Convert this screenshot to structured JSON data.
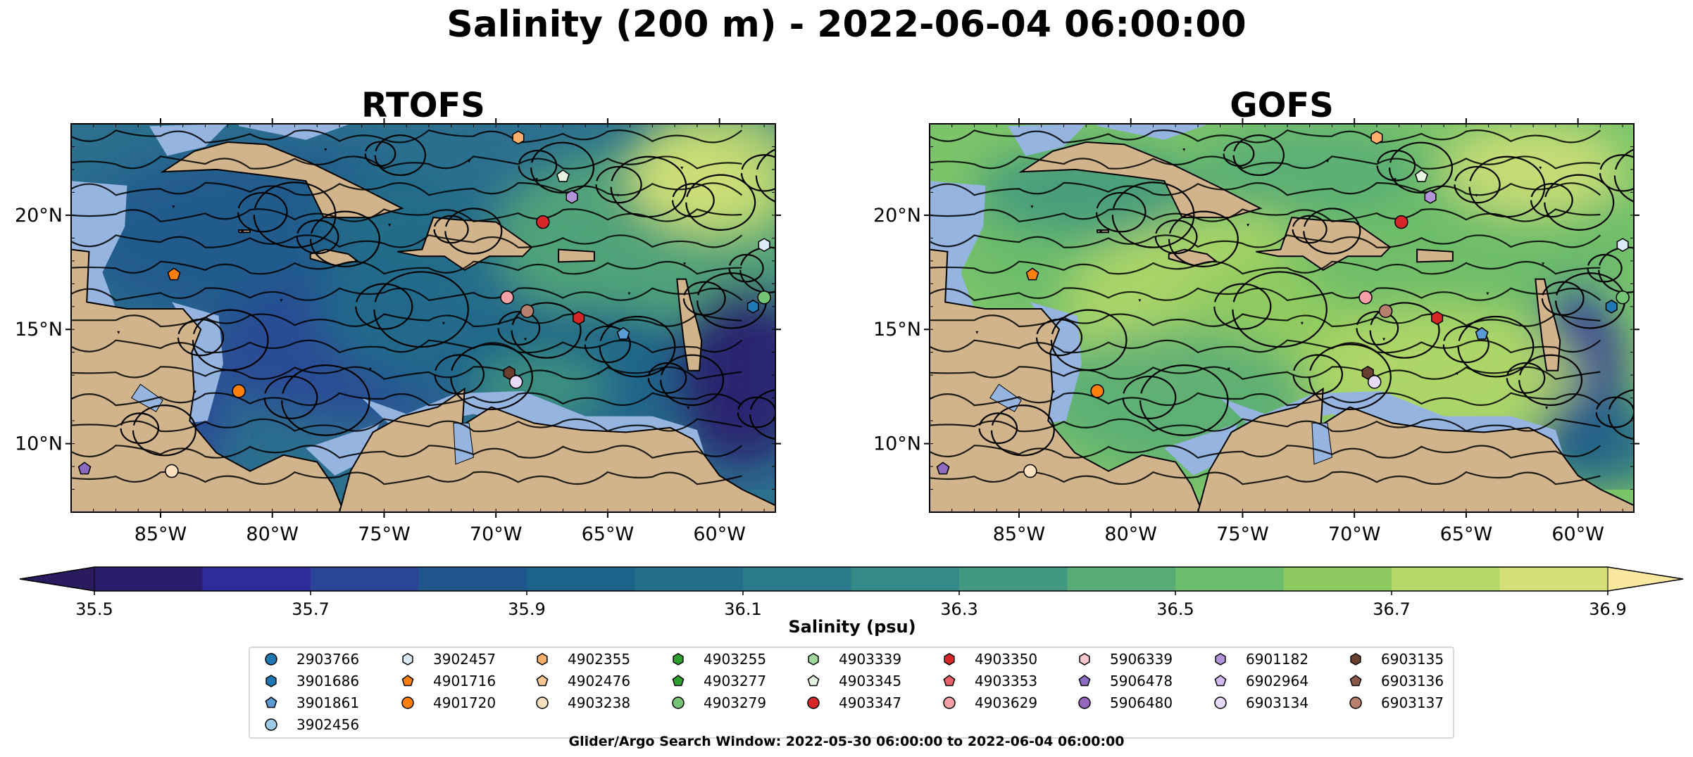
{
  "chart_data": {
    "type": "heatmap",
    "title": "Salinity (200 m) - 2022-06-04 06:00:00",
    "panels": [
      {
        "title": "RTOFS",
        "xlim": [
          -89,
          -57.5
        ],
        "ylim": [
          7,
          24
        ],
        "x_ticks": [
          -85,
          -80,
          -75,
          -70,
          -65,
          -60
        ],
        "x_tick_labels": [
          "85°W",
          "80°W",
          "75°W",
          "70°W",
          "65°W",
          "60°W"
        ],
        "y_ticks": [
          10,
          15,
          20
        ],
        "y_tick_labels": [
          "10°N",
          "15°N",
          "20°N"
        ],
        "field_mean_color": "#2c6f8e",
        "floats": [
          {
            "id": "4903238",
            "lon": -84.5,
            "lat": 8.8
          },
          {
            "id": "5906478",
            "lon": -88.4,
            "lat": 8.9
          },
          {
            "id": "4901720",
            "lon": -81.5,
            "lat": 12.3
          },
          {
            "id": "4901716",
            "lon": -84.4,
            "lat": 17.4
          },
          {
            "id": "4902355",
            "lon": -69.0,
            "lat": 23.4
          },
          {
            "id": "4903345",
            "lon": -67.0,
            "lat": 21.7
          },
          {
            "id": "6901182",
            "lon": -66.6,
            "lat": 20.8
          },
          {
            "id": "4903347",
            "lon": -67.9,
            "lat": 19.7
          },
          {
            "id": "6903137",
            "lon": -68.6,
            "lat": 15.8
          },
          {
            "id": "4903350",
            "lon": -66.3,
            "lat": 15.5
          },
          {
            "id": "6903135",
            "lon": -69.4,
            "lat": 13.1
          },
          {
            "id": "6903134",
            "lon": -69.1,
            "lat": 12.7
          },
          {
            "id": "4903629",
            "lon": -69.5,
            "lat": 16.4
          },
          {
            "id": "3901861",
            "lon": -64.3,
            "lat": 14.8
          },
          {
            "id": "3902457",
            "lon": -58.0,
            "lat": 18.7
          },
          {
            "id": "4903279",
            "lon": -58.0,
            "lat": 16.4
          },
          {
            "id": "3901686",
            "lon": -58.5,
            "lat": 16.0
          }
        ]
      },
      {
        "title": "GOFS",
        "xlim": [
          -89,
          -57.5
        ],
        "ylim": [
          7,
          24
        ],
        "x_ticks": [
          -85,
          -80,
          -75,
          -70,
          -65,
          -60
        ],
        "x_tick_labels": [
          "85°W",
          "80°W",
          "75°W",
          "70°W",
          "65°W",
          "60°W"
        ],
        "y_ticks": [
          10,
          15,
          20
        ],
        "y_tick_labels": [
          "10°N",
          "15°N",
          "20°N"
        ],
        "field_mean_color": "#7cc46a",
        "floats": [
          {
            "id": "4903238",
            "lon": -84.5,
            "lat": 8.8
          },
          {
            "id": "5906478",
            "lon": -88.4,
            "lat": 8.9
          },
          {
            "id": "4901720",
            "lon": -81.5,
            "lat": 12.3
          },
          {
            "id": "4901716",
            "lon": -84.4,
            "lat": 17.4
          },
          {
            "id": "4902355",
            "lon": -69.0,
            "lat": 23.4
          },
          {
            "id": "4903345",
            "lon": -67.0,
            "lat": 21.7
          },
          {
            "id": "6901182",
            "lon": -66.6,
            "lat": 20.8
          },
          {
            "id": "4903347",
            "lon": -67.9,
            "lat": 19.7
          },
          {
            "id": "6903137",
            "lon": -68.6,
            "lat": 15.8
          },
          {
            "id": "4903350",
            "lon": -66.3,
            "lat": 15.5
          },
          {
            "id": "6903135",
            "lon": -69.4,
            "lat": 13.1
          },
          {
            "id": "6903134",
            "lon": -69.1,
            "lat": 12.7
          },
          {
            "id": "4903629",
            "lon": -69.5,
            "lat": 16.4
          },
          {
            "id": "3901861",
            "lon": -64.3,
            "lat": 14.8
          },
          {
            "id": "3902457",
            "lon": -58.0,
            "lat": 18.7
          },
          {
            "id": "4903279",
            "lon": -58.0,
            "lat": 16.4
          },
          {
            "id": "3901686",
            "lon": -58.5,
            "lat": 16.0
          }
        ]
      }
    ],
    "colorbar": {
      "label": "Salinity (psu)",
      "vmin": 35.5,
      "vmax": 36.9,
      "step": 0.1,
      "extend": "both",
      "ticks": [
        35.5,
        35.7,
        35.9,
        36.1,
        36.3,
        36.5,
        36.7,
        36.9
      ],
      "tick_labels": [
        "35.5",
        "35.7",
        "35.9",
        "36.1",
        "36.3",
        "36.5",
        "36.7",
        "36.9"
      ],
      "colors": [
        "#2a1b6b",
        "#2d2c99",
        "#2a4596",
        "#1f578c",
        "#1c6389",
        "#236e8a",
        "#2b7a8b",
        "#348a87",
        "#43997f",
        "#58ab77",
        "#6bbc6b",
        "#8cc95f",
        "#b4d86a",
        "#d5e07a"
      ],
      "under_color": "#2a1b5e",
      "over_color": "#fbe8a0"
    },
    "legend": {
      "columns": [
        [
          {
            "id": "2903766",
            "marker": "circle",
            "color": "#1f77b4"
          },
          {
            "id": "3901686",
            "marker": "hexagon",
            "color": "#1f77b4"
          },
          {
            "id": "3901861",
            "marker": "pentagon",
            "color": "#5a9bd4"
          },
          {
            "id": "3902456",
            "marker": "circle",
            "color": "#9ecae9"
          }
        ],
        [
          {
            "id": "3902457",
            "marker": "hexagon",
            "color": "#dbeaf7"
          },
          {
            "id": "4901716",
            "marker": "pentagon",
            "color": "#ff7f0e"
          },
          {
            "id": "4901720",
            "marker": "circle",
            "color": "#ff7f0e"
          }
        ],
        [
          {
            "id": "4902355",
            "marker": "hexagon",
            "color": "#fdae6b"
          },
          {
            "id": "4902476",
            "marker": "pentagon",
            "color": "#fdc894"
          },
          {
            "id": "4903238",
            "marker": "circle",
            "color": "#fde0c0"
          }
        ],
        [
          {
            "id": "4903255",
            "marker": "hexagon",
            "color": "#2ca02c"
          },
          {
            "id": "4903277",
            "marker": "pentagon",
            "color": "#2ca02c"
          },
          {
            "id": "4903279",
            "marker": "circle",
            "color": "#74c476"
          }
        ],
        [
          {
            "id": "4903339",
            "marker": "hexagon",
            "color": "#a1d99b"
          },
          {
            "id": "4903345",
            "marker": "pentagon",
            "color": "#e5f5e0"
          },
          {
            "id": "4903347",
            "marker": "circle",
            "color": "#d62728"
          }
        ],
        [
          {
            "id": "4903350",
            "marker": "hexagon",
            "color": "#d62728"
          },
          {
            "id": "4903353",
            "marker": "pentagon",
            "color": "#e8606a"
          },
          {
            "id": "4903629",
            "marker": "circle",
            "color": "#f4a0a6"
          }
        ],
        [
          {
            "id": "5906339",
            "marker": "hexagon",
            "color": "#f8c6ca"
          },
          {
            "id": "5906478",
            "marker": "pentagon",
            "color": "#8d6bc2"
          },
          {
            "id": "5906480",
            "marker": "circle",
            "color": "#9467bd"
          }
        ],
        [
          {
            "id": "6901182",
            "marker": "hexagon",
            "color": "#b294d8"
          },
          {
            "id": "6902964",
            "marker": "pentagon",
            "color": "#d2bcef"
          },
          {
            "id": "6903134",
            "marker": "circle",
            "color": "#e8dafb"
          }
        ],
        [
          {
            "id": "6903135",
            "marker": "hexagon",
            "color": "#6b3f2f"
          },
          {
            "id": "6903136",
            "marker": "pentagon",
            "color": "#8c564b"
          },
          {
            "id": "6903137",
            "marker": "circle",
            "color": "#b7806f"
          }
        ]
      ]
    },
    "search_window_text": "Glider/Argo Search Window: 2022-05-30 06:00:00 to 2022-06-04 06:00:00"
  }
}
